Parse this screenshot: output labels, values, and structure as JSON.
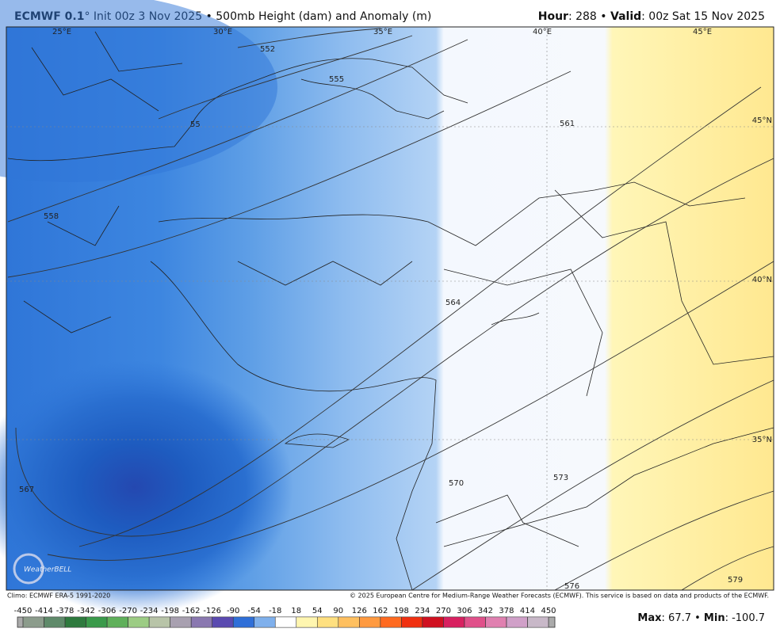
{
  "header": {
    "left": [
      {
        "text": "ECMWF 0.1",
        "bold": true
      },
      {
        "text": "° Init 00z 3 Nov 2025 • 500mb Height (dam) and Anomaly (m)",
        "bold": false
      }
    ],
    "right": [
      {
        "text": "Hour",
        "bold": true
      },
      {
        "text": ": 288 • ",
        "bold": false
      },
      {
        "text": "Valid",
        "bold": true
      },
      {
        "text": ": 00z Sat 15 Nov 2025",
        "bold": false
      }
    ]
  },
  "map": {
    "longitude_labels": [
      "25°E",
      "30°E",
      "35°E",
      "40°E",
      "45°E"
    ],
    "latitude_labels": [
      "45°N",
      "40°N",
      "35°N"
    ],
    "contour_labels": [
      "552",
      "555",
      "55",
      "558",
      "561",
      "564",
      "567",
      "570",
      "573",
      "576",
      "579"
    ],
    "watermark": "WeatherBELL"
  },
  "footer": {
    "climo": "Climo: ECMWF ERA-5 1991-2020",
    "copyright": "© 2025 European Centre for Medium-Range Weather Forecasts (ECMWF). This service is based on data and products of the ECMWF."
  },
  "colorbar": {
    "ticks": [
      -450,
      -414,
      -378,
      -342,
      -306,
      -270,
      -234,
      -198,
      -162,
      -126,
      -90,
      -54,
      -18,
      18,
      54,
      90,
      126,
      162,
      198,
      234,
      270,
      306,
      342,
      378,
      414,
      450
    ],
    "colors": [
      "#8c9c8c",
      "#5f8a6a",
      "#2e7a3e",
      "#3a9a4a",
      "#5fb05a",
      "#9ccc84",
      "#b8c4a8",
      "#a8a0b0",
      "#8a78b0",
      "#5a4ab0",
      "#2f6fd8",
      "#7fb0ec",
      "#ffffff",
      "#fff6b0",
      "#ffe080",
      "#ffc060",
      "#ff9a40",
      "#ff6a20",
      "#f03010",
      "#d01020",
      "#d82060",
      "#e0508a",
      "#e080b0",
      "#d0a0c8",
      "#c8b8c8"
    ]
  },
  "stats": [
    {
      "text": "Max",
      "bold": true
    },
    {
      "text": ": 67.7 • ",
      "bold": false
    },
    {
      "text": "Min",
      "bold": true
    },
    {
      "text": ": -100.7",
      "bold": false
    }
  ]
}
